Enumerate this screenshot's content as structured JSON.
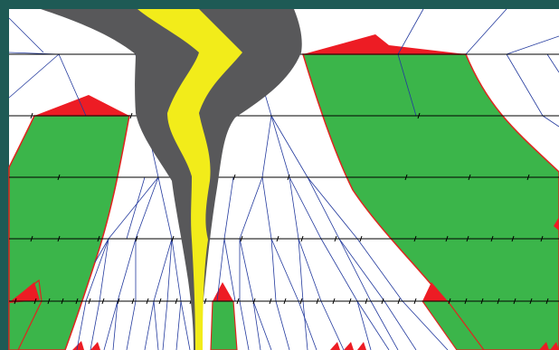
{
  "colors": {
    "frame": "#1e5a55",
    "background": "#ffffff",
    "region_green": "#3bb54a",
    "region_green_outline": "#e0241f",
    "region_red": "#ed1c24",
    "road_dark": "#58585a",
    "road_yellow": "#f2ec1a",
    "grid_line": "#000000",
    "mesh_line": "#233a9e"
  },
  "labels": []
}
